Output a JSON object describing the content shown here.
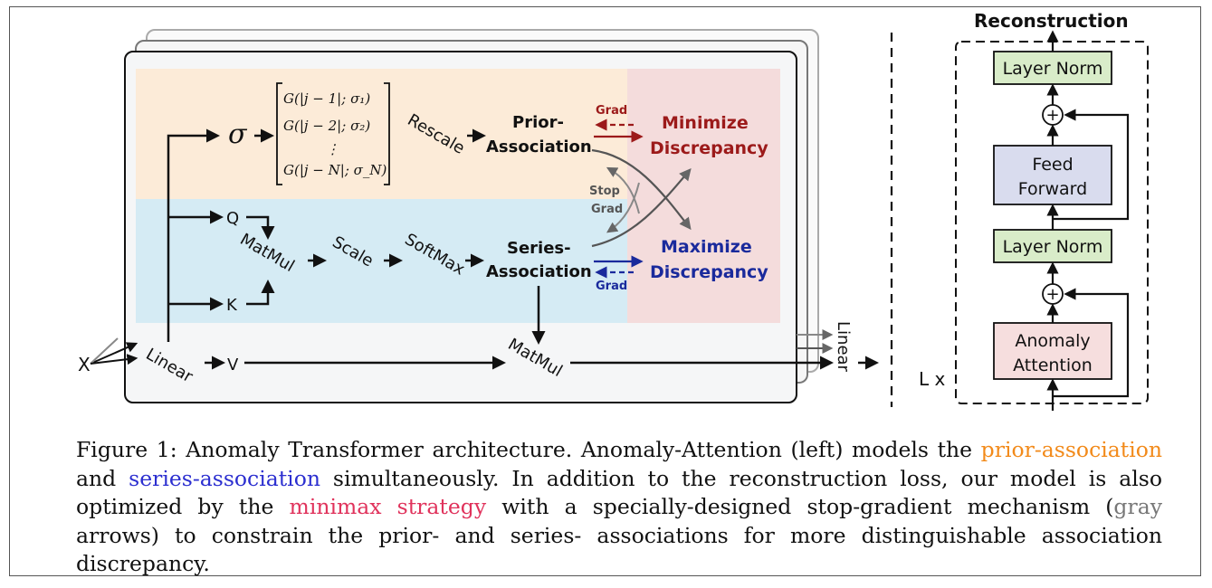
{
  "figure": {
    "left": {
      "input_x": "X",
      "linear_in": "Linear",
      "sigma": "σ",
      "kernel_rows": [
        "G(|j − 1|; σ₁)",
        "G(|j − 2|; σ₂)",
        "⋮",
        "G(|j − N|; σ_N)"
      ],
      "rescale": "Rescale",
      "prior_assoc_1": "Prior-",
      "prior_assoc_2": "Association",
      "q": "Q",
      "k": "K",
      "v": "V",
      "matmul_1": "MatMul",
      "scale": "Scale",
      "softmax": "SoftMax",
      "series_assoc_1": "Series-",
      "series_assoc_2": "Association",
      "matmul_2": "MatMul",
      "linear_out": "Linear",
      "grad_top": "Grad",
      "stop_1": "Stop",
      "stop_2": "Grad",
      "grad_bottom": "Grad",
      "minimize_1": "Minimize",
      "minimize_2": "Discrepancy",
      "maximize_1": "Maximize",
      "maximize_2": "Discrepancy"
    },
    "right": {
      "title": "Reconstruction",
      "layer_norm_top": "Layer Norm",
      "plus": "+",
      "feed_forward_1": "Feed",
      "feed_forward_2": "Forward",
      "layer_norm_bottom": "Layer Norm",
      "anomaly_attention_1": "Anomaly",
      "anomaly_attention_2": "Attention",
      "repeat": "L x"
    },
    "colors": {
      "prior_bg": "#fcebd8",
      "series_bg": "#d5ebf4",
      "discrepancy_bg": "#f4dcdc",
      "minimize_red": "#9c1a1a",
      "maximize_blue": "#1a2a9c",
      "layer_norm_fill": "#d9ecc9",
      "feed_forward_fill": "#d9dcee",
      "anomaly_fill": "#f6dede",
      "gray_arrow": "#666666"
    }
  },
  "caption": {
    "lead": "Figure 1: Anomaly Transformer architecture. Anomaly-Attention (left) models the ",
    "prior_association": "prior-association",
    "and": " and ",
    "series_association": "series-association",
    "mid": " simultaneously. In addition to the reconstruction loss, our model is also optimized by the ",
    "minimax_strategy": "minimax strategy",
    "mid2": " with a specially-designed stop-gradient mechanism (",
    "gray": "gray",
    "tail": " arrows) to constrain the prior- and series- associations for more distinguishable association discrepancy."
  }
}
